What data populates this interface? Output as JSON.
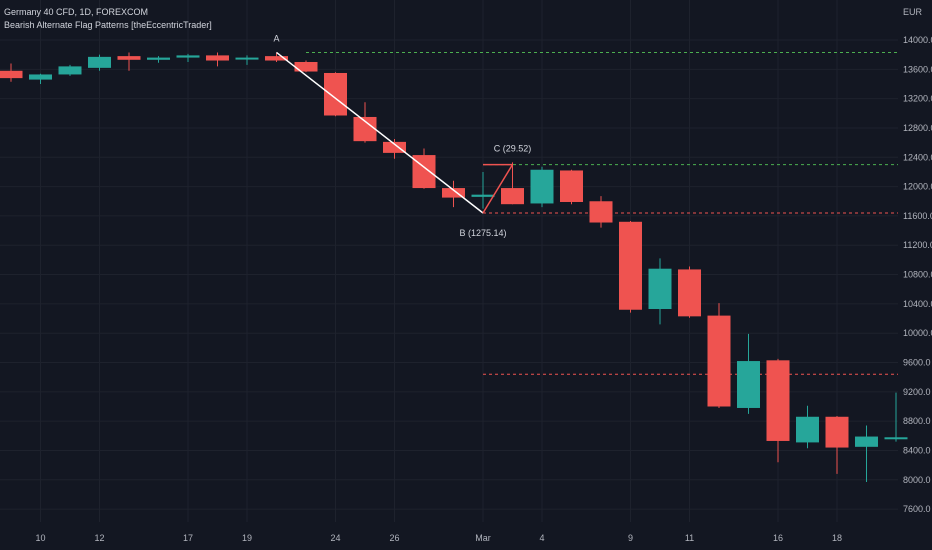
{
  "header": {
    "symbol_line": "Germany 40 CFD, 1D, FOREXCOM",
    "indicator_line": "Bearish Alternate Flag Patterns [theEccentricTrader]"
  },
  "colors": {
    "background": "#131722",
    "grid": "#1e222d",
    "bull": "#26a69a",
    "bear": "#ef5350",
    "axis_text": "#b2b5be",
    "green_line": "#4caf50",
    "red_line": "#ef5350",
    "pattern_line": "#ffffff"
  },
  "chart_data": {
    "type": "candlestick",
    "currency_label": "EUR",
    "y_ticks": [
      14000.0,
      13600.0,
      13200.0,
      12800.0,
      12400.0,
      12000.0,
      11600.0,
      11200.0,
      10800.0,
      10400.0,
      10000.0,
      9600.0,
      9200.0,
      8800.0,
      8400.0,
      8000.0,
      7600.0
    ],
    "x_ticks": [
      {
        "label": "10",
        "index": 1
      },
      {
        "label": "12",
        "index": 3
      },
      {
        "label": "17",
        "index": 6
      },
      {
        "label": "19",
        "index": 8
      },
      {
        "label": "24",
        "index": 11
      },
      {
        "label": "26",
        "index": 13
      },
      {
        "label": "Mar",
        "index": 16
      },
      {
        "label": "4",
        "index": 18
      },
      {
        "label": "9",
        "index": 21
      },
      {
        "label": "11",
        "index": 23
      },
      {
        "label": "16",
        "index": 26
      },
      {
        "label": "18",
        "index": 28
      }
    ],
    "candles": [
      {
        "open": 13580,
        "high": 13680,
        "low": 13430,
        "close": 13480
      },
      {
        "open": 13460,
        "high": 13540,
        "low": 13400,
        "close": 13530
      },
      {
        "open": 13530,
        "high": 13660,
        "low": 13510,
        "close": 13640
      },
      {
        "open": 13620,
        "high": 13800,
        "low": 13580,
        "close": 13770
      },
      {
        "open": 13780,
        "high": 13830,
        "low": 13580,
        "close": 13730
      },
      {
        "open": 13730,
        "high": 13780,
        "low": 13690,
        "close": 13760
      },
      {
        "open": 13760,
        "high": 13810,
        "low": 13700,
        "close": 13790
      },
      {
        "open": 13790,
        "high": 13830,
        "low": 13640,
        "close": 13720
      },
      {
        "open": 13740,
        "high": 13790,
        "low": 13660,
        "close": 13760
      },
      {
        "open": 13780,
        "high": 13830,
        "low": 13700,
        "close": 13720
      },
      {
        "open": 13700,
        "high": 13720,
        "low": 13560,
        "close": 13570
      },
      {
        "open": 13550,
        "high": 13560,
        "low": 12960,
        "close": 12970
      },
      {
        "open": 12950,
        "high": 13150,
        "low": 12600,
        "close": 12620
      },
      {
        "open": 12610,
        "high": 12650,
        "low": 12380,
        "close": 12460
      },
      {
        "open": 12430,
        "high": 12520,
        "low": 11970,
        "close": 11980
      },
      {
        "open": 11980,
        "high": 12080,
        "low": 11720,
        "close": 11850
      },
      {
        "open": 11860,
        "high": 12200,
        "low": 11700,
        "close": 11890
      },
      {
        "open": 11980,
        "high": 12330,
        "low": 11760,
        "close": 11760
      },
      {
        "open": 11770,
        "high": 12270,
        "low": 11720,
        "close": 12230
      },
      {
        "open": 12220,
        "high": 12230,
        "low": 11760,
        "close": 11790
      },
      {
        "open": 11800,
        "high": 11870,
        "low": 11440,
        "close": 11510
      },
      {
        "open": 11520,
        "high": 11530,
        "low": 10280,
        "close": 10320
      },
      {
        "open": 10330,
        "high": 11020,
        "low": 10120,
        "close": 10880
      },
      {
        "open": 10870,
        "high": 10910,
        "low": 10210,
        "close": 10230
      },
      {
        "open": 10240,
        "high": 10410,
        "low": 8980,
        "close": 9000
      },
      {
        "open": 8980,
        "high": 9990,
        "low": 8900,
        "close": 9620
      },
      {
        "open": 9630,
        "high": 9650,
        "low": 8240,
        "close": 8530
      },
      {
        "open": 8510,
        "high": 9010,
        "low": 8430,
        "close": 8860
      },
      {
        "open": 8860,
        "high": 8870,
        "low": 8080,
        "close": 8440
      },
      {
        "open": 8450,
        "high": 8740,
        "low": 7970,
        "close": 8590
      },
      {
        "open": 8570,
        "high": 9190,
        "low": 8520,
        "close": 8580
      }
    ],
    "levels": [
      {
        "price": 13830,
        "from_index": 10,
        "color": "green"
      },
      {
        "price": 12300,
        "from_index": 16,
        "color": "green"
      },
      {
        "price": 11640,
        "from_index": 16,
        "color": "red"
      },
      {
        "price": 9440,
        "from_index": 16,
        "color": "red"
      }
    ],
    "pattern_points": [
      {
        "name": "A",
        "label": "A",
        "index": 9,
        "price": 13830
      },
      {
        "name": "B",
        "label": "B (1275.14)",
        "index": 16,
        "price": 11640
      },
      {
        "name": "C",
        "label": "C (29.52)",
        "index": 17,
        "price": 12300
      }
    ]
  }
}
